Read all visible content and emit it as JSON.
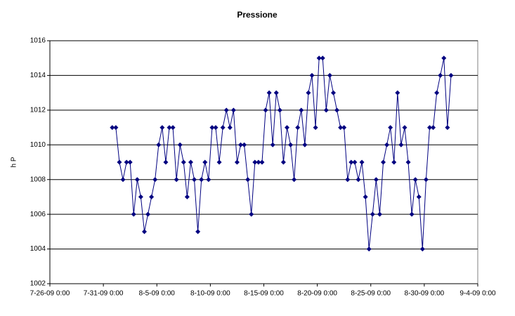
{
  "chart_data": {
    "type": "line",
    "title": "Pressione",
    "y_label": "h P",
    "x": [
      "7-31-09 20:00",
      "8-1-09 4:00",
      "8-1-09 12:00",
      "8-1-09 20:00",
      "8-2-09 4:00",
      "8-2-09 12:00",
      "8-2-09 20:00",
      "8-3-09 4:00",
      "8-3-09 12:00",
      "8-3-09 20:00",
      "8-4-09 4:00",
      "8-4-09 12:00",
      "8-4-09 20:00",
      "8-5-09 4:00",
      "8-5-09 12:00",
      "8-5-09 20:00",
      "8-6-09 4:00",
      "8-6-09 12:00",
      "8-6-09 20:00",
      "8-7-09 4:00",
      "8-7-09 12:00",
      "8-7-09 20:00",
      "8-8-09 4:00",
      "8-8-09 12:00",
      "8-8-09 20:00",
      "8-9-09 4:00",
      "8-9-09 12:00",
      "8-9-09 20:00",
      "8-10-09 4:00",
      "8-10-09 12:00",
      "8-10-09 20:00",
      "8-11-09 4:00",
      "8-11-09 12:00",
      "8-11-09 20:00",
      "8-12-09 4:00",
      "8-12-09 12:00",
      "8-12-09 20:00",
      "8-13-09 4:00",
      "8-13-09 12:00",
      "8-13-09 20:00",
      "8-14-09 4:00",
      "8-14-09 12:00",
      "8-14-09 20:00",
      "8-15-09 4:00",
      "8-15-09 12:00",
      "8-15-09 20:00",
      "8-16-09 4:00",
      "8-16-09 12:00",
      "8-16-09 20:00",
      "8-17-09 4:00",
      "8-17-09 12:00",
      "8-17-09 20:00",
      "8-18-09 4:00",
      "8-18-09 12:00",
      "8-18-09 20:00",
      "8-19-09 4:00",
      "8-19-09 12:00",
      "8-19-09 20:00",
      "8-20-09 4:00",
      "8-20-09 12:00",
      "8-20-09 20:00",
      "8-21-09 4:00",
      "8-21-09 12:00",
      "8-21-09 20:00",
      "8-22-09 4:00",
      "8-22-09 12:00",
      "8-22-09 20:00",
      "8-23-09 4:00",
      "8-23-09 12:00",
      "8-23-09 20:00",
      "8-24-09 4:00",
      "8-24-09 12:00",
      "8-24-09 20:00",
      "8-25-09 4:00",
      "8-25-09 12:00",
      "8-25-09 20:00",
      "8-26-09 4:00",
      "8-26-09 12:00",
      "8-26-09 20:00",
      "8-27-09 4:00",
      "8-27-09 12:00",
      "8-27-09 20:00",
      "8-28-09 4:00",
      "8-28-09 12:00",
      "8-28-09 20:00",
      "8-29-09 4:00",
      "8-29-09 12:00",
      "8-29-09 20:00",
      "8-30-09 4:00",
      "8-30-09 12:00",
      "8-30-09 20:00",
      "8-31-09 4:00",
      "8-31-09 12:00",
      "8-31-09 20:00",
      "9-1-09 4:00",
      "9-1-09 12:00"
    ],
    "series": [
      {
        "name": "Pressione",
        "color": "#000080",
        "values": [
          1011,
          1011,
          1009,
          1008,
          1009,
          1009,
          1006,
          1008,
          1007,
          1005,
          1006,
          1007,
          1008,
          1010,
          1011,
          1009,
          1011,
          1011,
          1008,
          1010,
          1009,
          1007,
          1009,
          1008,
          1005,
          1008,
          1009,
          1008,
          1011,
          1011,
          1009,
          1011,
          1012,
          1011,
          1012,
          1009,
          1010,
          1010,
          1008,
          1006,
          1009,
          1009,
          1009,
          1012,
          1013,
          1010,
          1013,
          1012,
          1009,
          1011,
          1010,
          1008,
          1011,
          1012,
          1010,
          1013,
          1014,
          1011,
          1015,
          1015,
          1012,
          1014,
          1013,
          1012,
          1011,
          1011,
          1008,
          1009,
          1009,
          1008,
          1009,
          1007,
          1004,
          1006,
          1008,
          1006,
          1009,
          1010,
          1011,
          1009,
          1013,
          1010,
          1011,
          1009,
          1006,
          1008,
          1007,
          1004,
          1008,
          1011,
          1011,
          1013,
          1014,
          1015,
          1011,
          1014
        ]
      }
    ],
    "xlim": [
      "7-26-09 0:00",
      "9-4-09 0:00"
    ],
    "xticks": [
      "7-26-09 0:00",
      "7-31-09 0:00",
      "8-5-09 0:00",
      "8-10-09 0:00",
      "8-15-09 0:00",
      "8-20-09 0:00",
      "8-25-09 0:00",
      "8-30-09 0:00",
      "9-4-09 0:00"
    ],
    "ylim": [
      1002,
      1016
    ],
    "yticks": [
      1002,
      1004,
      1006,
      1008,
      1010,
      1012,
      1014,
      1016
    ],
    "grid": true
  }
}
